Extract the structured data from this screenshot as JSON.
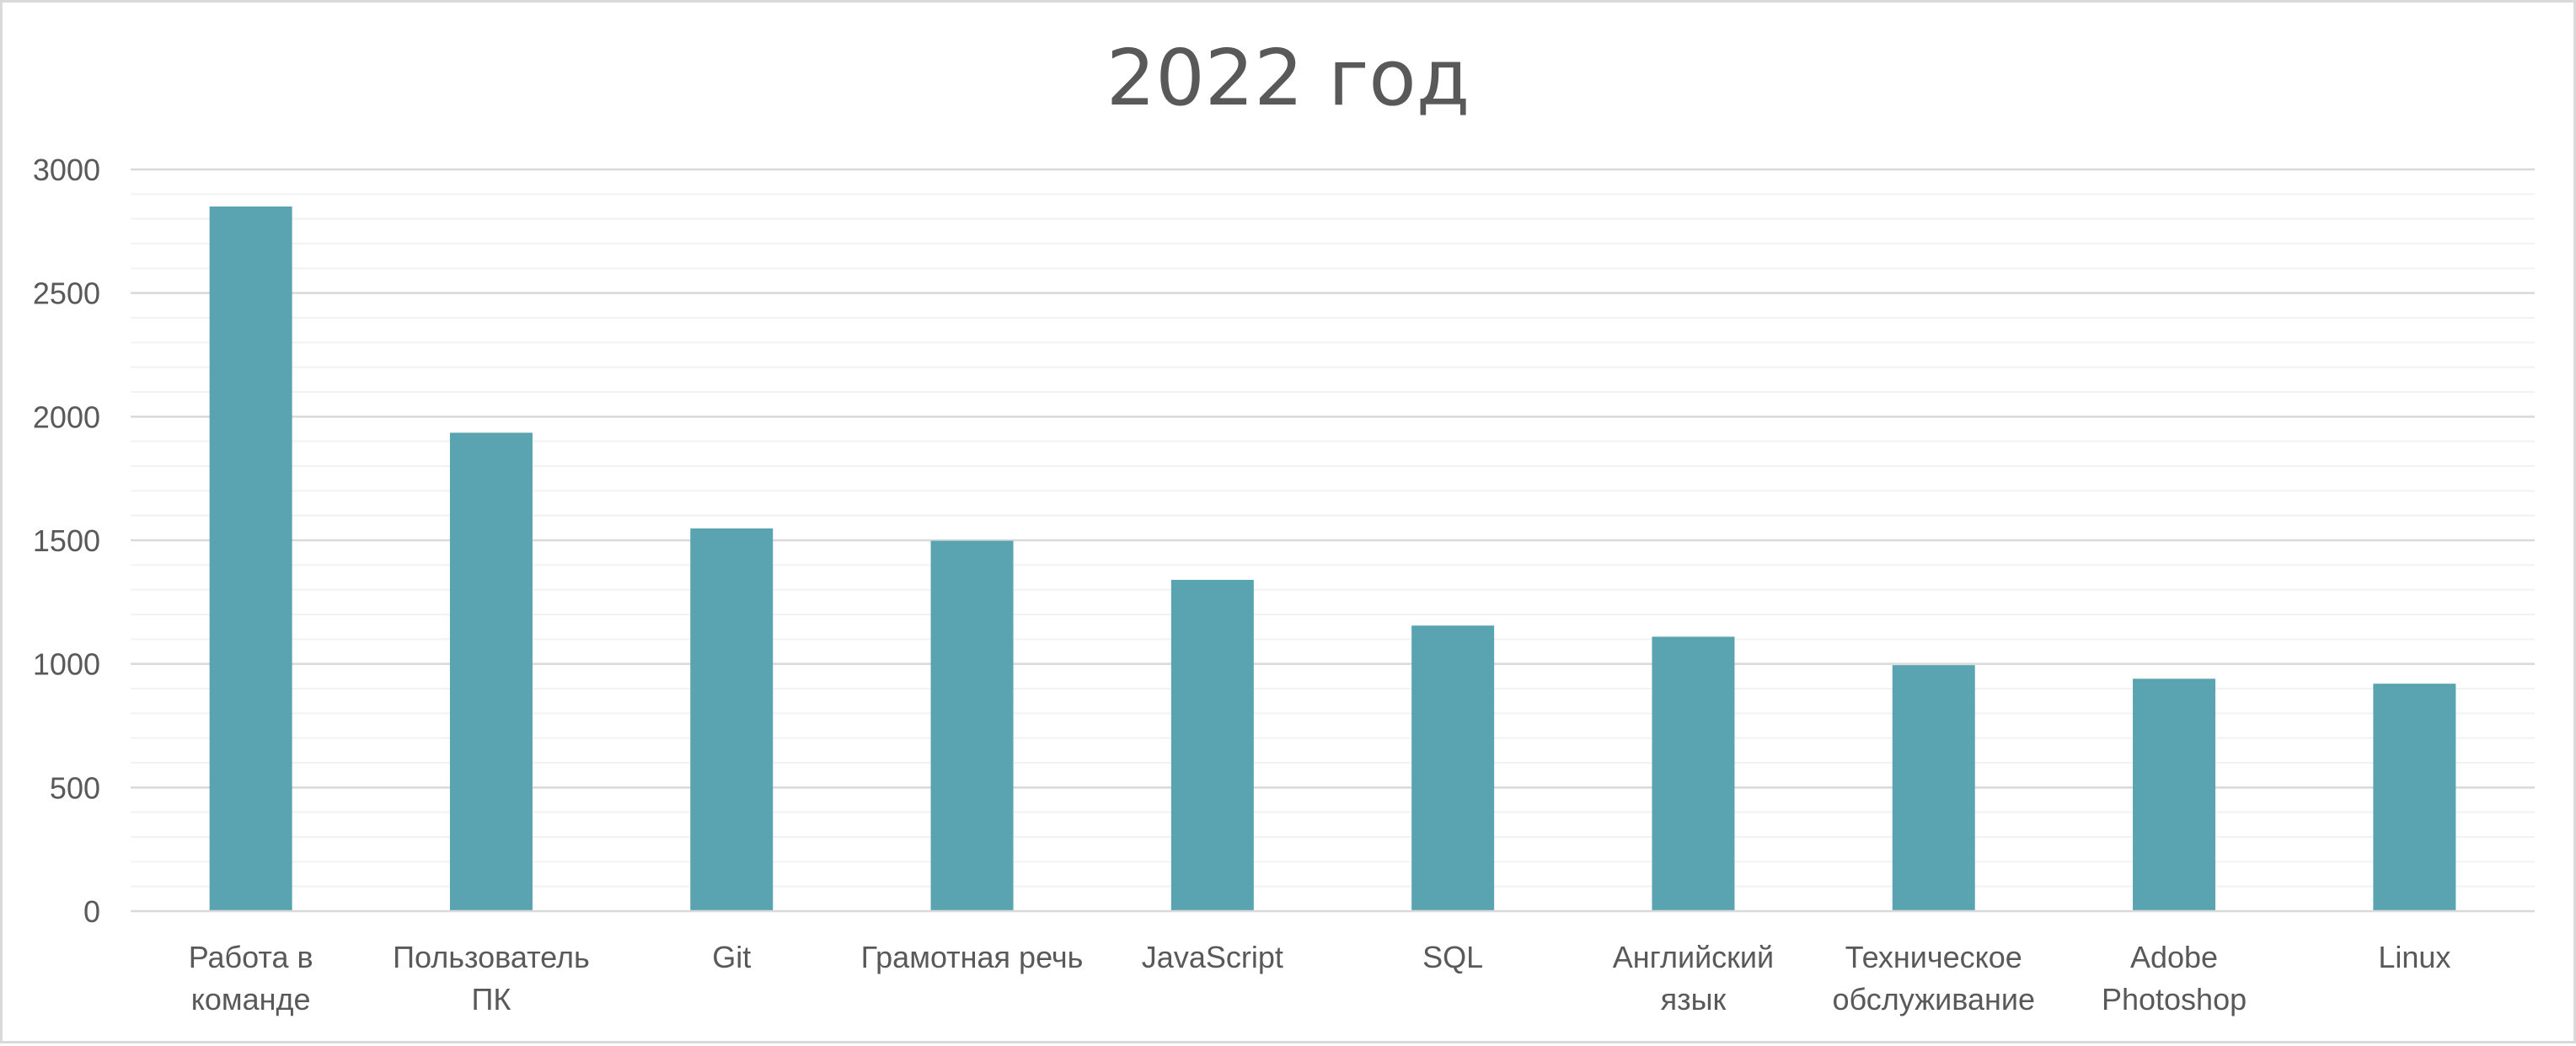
{
  "chart_data": {
    "type": "bar",
    "title": "2022 год",
    "xlabel": "",
    "ylabel": "",
    "ylim": [
      0,
      3000
    ],
    "yticks": [
      0,
      500,
      1000,
      1500,
      2000,
      2500,
      3000
    ],
    "grid": true,
    "legend": "none",
    "bar_color": "#5aa4b1",
    "categories": [
      [
        "Работа в",
        "команде"
      ],
      [
        "Пользователь",
        "ПК"
      ],
      [
        "Git"
      ],
      [
        "Грамотная речь"
      ],
      [
        "JavaScript"
      ],
      [
        "SQL"
      ],
      [
        "Английский",
        "язык"
      ],
      [
        "Техническое",
        "обслуживание"
      ],
      [
        "Adobe",
        "Photoshop"
      ],
      [
        "Linux"
      ]
    ],
    "values": [
      2850,
      1935,
      1548,
      1498,
      1340,
      1155,
      1110,
      995,
      940,
      920
    ]
  }
}
